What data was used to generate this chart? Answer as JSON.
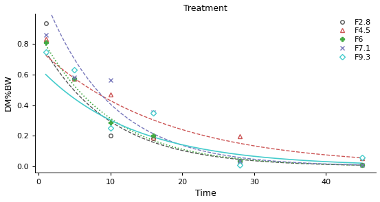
{
  "title": "Treatment",
  "xlabel": "Time",
  "ylabel": "DM%BW",
  "xlim": [
    -0.5,
    47
  ],
  "ylim": [
    -0.04,
    1.0
  ],
  "series": [
    {
      "label": "F2.8",
      "color": "#555555",
      "linestyle": "--",
      "marker": "o",
      "markerfacecolor": "white",
      "markeredgecolor": "#555555",
      "markersize": 4,
      "linewidth": 1.0,
      "x": [
        1,
        5,
        10,
        16,
        28,
        45
      ],
      "y": [
        0.935,
        0.575,
        0.2,
        0.185,
        0.03,
        0.01
      ]
    },
    {
      "label": "F4.5",
      "color": "#cc5555",
      "linestyle": "--",
      "marker": "^",
      "markerfacecolor": "white",
      "markeredgecolor": "#cc5555",
      "markersize": 4,
      "linewidth": 1.0,
      "x": [
        1,
        5,
        10,
        16,
        28,
        45
      ],
      "y": [
        0.835,
        0.575,
        0.47,
        0.19,
        0.195,
        0.055
      ]
    },
    {
      "label": "F6",
      "color": "#44aa44",
      "linestyle": ":",
      "marker": "P",
      "markerfacecolor": "#44aa44",
      "markeredgecolor": "#44aa44",
      "markersize": 5,
      "linewidth": 1.2,
      "x": [
        1,
        5,
        10,
        16,
        28,
        45
      ],
      "y": [
        0.81,
        0.575,
        0.285,
        0.2,
        0.035,
        0.01
      ]
    },
    {
      "label": "F7.1",
      "color": "#7777bb",
      "linestyle": "--",
      "marker": "x",
      "markerfacecolor": "#7777bb",
      "markeredgecolor": "#7777bb",
      "markersize": 5,
      "linewidth": 1.0,
      "x": [
        1,
        5,
        10,
        16,
        28,
        45
      ],
      "y": [
        0.86,
        0.58,
        0.565,
        0.355,
        0.035,
        0.01
      ]
    },
    {
      "label": "F9.3",
      "color": "#44cccc",
      "linestyle": "-",
      "marker": "D",
      "markerfacecolor": "white",
      "markeredgecolor": "#44cccc",
      "markersize": 4,
      "linewidth": 1.2,
      "x": [
        1,
        5,
        10,
        16,
        28,
        45
      ],
      "y": [
        0.75,
        0.63,
        0.25,
        0.35,
        0.01,
        0.06
      ]
    }
  ],
  "xticks": [
    0,
    10,
    20,
    30,
    40
  ],
  "yticks": [
    0.0,
    0.2,
    0.4,
    0.6,
    0.8
  ],
  "background_color": "#ffffff",
  "title_fontsize": 9,
  "axis_fontsize": 9,
  "tick_fontsize": 8
}
